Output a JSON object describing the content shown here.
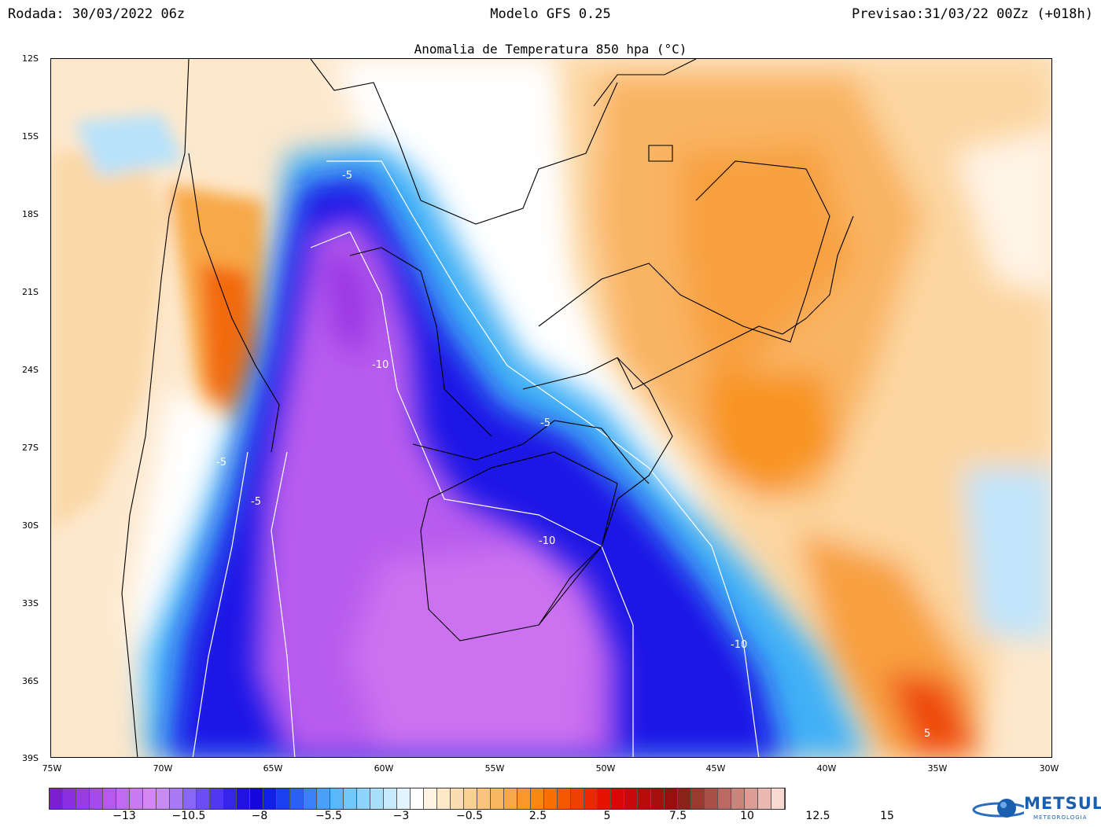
{
  "header": {
    "run": "Rodada: 30/03/2022 06z",
    "model": "Modelo GFS 0.25",
    "forecast": "Previsao:31/03/22 00Zz (+018h)"
  },
  "title": "Anomalia de Temperatura 850 hpa (°C)",
  "axes": {
    "lat_labels": [
      "12S",
      "15S",
      "18S",
      "21S",
      "24S",
      "27S",
      "30S",
      "33S",
      "36S",
      "39S"
    ],
    "lon_labels": [
      "75W",
      "70W",
      "65W",
      "60W",
      "55W",
      "50W",
      "45W",
      "40W",
      "35W",
      "30W"
    ]
  },
  "contour_labels": [
    "-5",
    "-10",
    "-10",
    "-5",
    "-5",
    "-10",
    "-10",
    "-5",
    "5"
  ],
  "colorbar": {
    "colors": [
      "#7a1fd6",
      "#8b2ee0",
      "#9a3ce6",
      "#a64bea",
      "#b45aee",
      "#c06af0",
      "#cc78f2",
      "#d486f2",
      "#c68cf4",
      "#a878f6",
      "#8a66f6",
      "#6a4ef4",
      "#5038ee",
      "#3624e8",
      "#2212e2",
      "#1608dc",
      "#1020e8",
      "#1a40f0",
      "#2a60f4",
      "#3a80f6",
      "#4aa0f8",
      "#5ab8fa",
      "#72c8fa",
      "#8ed4fa",
      "#aadffb",
      "#c6eafc",
      "#e2f4fd",
      "#ffffff",
      "#fff4e2",
      "#fde8c8",
      "#fcdcae",
      "#fbd094",
      "#fac47a",
      "#f9b860",
      "#f8a846",
      "#f8982c",
      "#f88812",
      "#f87000",
      "#f45800",
      "#f04000",
      "#ec2800",
      "#e41400",
      "#d80808",
      "#c80a0a",
      "#b80c0c",
      "#a80e0e",
      "#98100e",
      "#8a2418",
      "#9a3a30",
      "#aa5048",
      "#ba6a62",
      "#ca847c",
      "#da9e96",
      "#eab8b0",
      "#f8d8d2"
    ],
    "labels": [
      "−13",
      "−10.5",
      "−8",
      "−5.5",
      "−3",
      "−0.5",
      "2.5",
      "5",
      "7.5",
      "10",
      "12.5",
      "15"
    ]
  },
  "logo": {
    "name": "METSUL",
    "sub": "METEOROLOGIA"
  },
  "colors": {
    "deep_cold": "#c060f0",
    "cold": "#1a10e0",
    "cool": "#3fa8f5",
    "neutral": "#ffffff",
    "warm": "#fcd29a",
    "hot": "#f7961c",
    "very_hot": "#e43a0a"
  }
}
